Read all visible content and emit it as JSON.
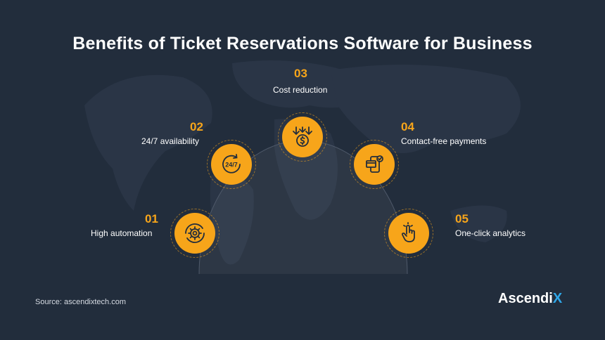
{
  "title": "Benefits of Ticket Reservations Software for Business",
  "benefits": [
    {
      "number": "01",
      "label": "High automation",
      "icon": "gear-automation-icon"
    },
    {
      "number": "02",
      "label": "24/7 availability",
      "icon": "clock-24-7-icon",
      "icon_text": "24/7"
    },
    {
      "number": "03",
      "label": "Cost reduction",
      "icon": "cost-down-icon"
    },
    {
      "number": "04",
      "label": "Contact-free payments",
      "icon": "phone-card-payment-icon"
    },
    {
      "number": "05",
      "label": "One-click analytics",
      "icon": "tap-hand-icon"
    }
  ],
  "source": "Source: ascendixtech.com",
  "logo": {
    "main": "Ascendi",
    "accent": "X"
  },
  "colors": {
    "background": "#222d3c",
    "accent": "#f7a51a",
    "logo_accent": "#2fa7e8"
  }
}
